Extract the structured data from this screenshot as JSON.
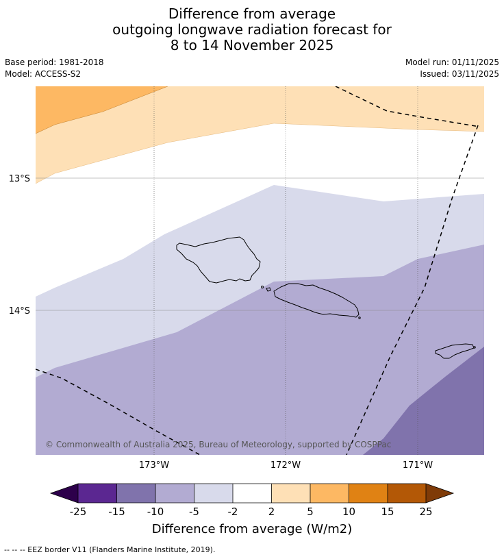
{
  "title": {
    "line1": "Difference from average",
    "line2": "outgoing longwave radiation forecast for",
    "line3": "8 to 14 November 2025"
  },
  "meta": {
    "base_period": "Base period: 1981-2018",
    "model": "Model: ACCESS-S2",
    "model_run": "Model run: 01/11/2025",
    "issued": "Issued: 03/11/2025"
  },
  "map": {
    "lat_labels": [
      "13°S",
      "14°S"
    ],
    "lon_labels": [
      "173°W",
      "172°W",
      "171°W"
    ],
    "copyright": "© Commonwealth of Australia 2025, Bureau of Meteorology, supported by COSPPac"
  },
  "colorbar": {
    "ticks": [
      "-25",
      "-15",
      "-10",
      "-5",
      "-2",
      "2",
      "5",
      "10",
      "15",
      "25"
    ],
    "label": "Difference from average (W/m2)",
    "under_color": "#2d004b",
    "over_color": "#7f3b08",
    "colors": [
      "#5b2791",
      "#8073ac",
      "#b2abd2",
      "#d8daeb",
      "#ffffff",
      "#fee0b6",
      "#fdb863",
      "#e08214",
      "#b35806"
    ]
  },
  "legend": {
    "eez": "--  --  -- EEZ border V11 (Flanders Marine Institute, 2019)."
  }
}
